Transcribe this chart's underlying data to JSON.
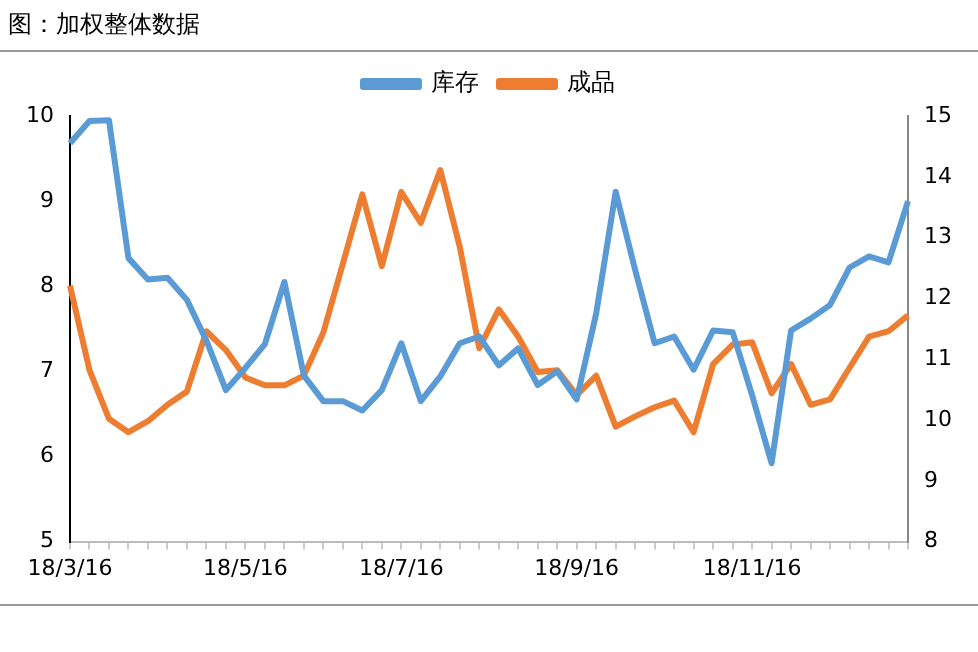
{
  "chart_data": {
    "type": "line",
    "title": "图：加权整体数据",
    "categories": [
      "18/3/16",
      null,
      null,
      null,
      null,
      null,
      null,
      null,
      null,
      "18/5/16",
      null,
      null,
      null,
      null,
      null,
      null,
      null,
      "18/7/16",
      null,
      null,
      null,
      null,
      null,
      null,
      null,
      null,
      "18/9/16",
      null,
      null,
      null,
      null,
      null,
      null,
      null,
      null,
      "18/11/16",
      null,
      null,
      null,
      null,
      null,
      null,
      null,
      null
    ],
    "series": [
      {
        "name": "库存",
        "color": "#5b9bd5",
        "values": [
          9.68,
          9.94,
          9.95,
          8.33,
          8.08,
          8.1,
          7.84,
          7.36,
          6.78,
          7.04,
          7.32,
          8.05,
          6.95,
          6.65,
          6.65,
          6.54,
          6.78,
          7.33,
          6.65,
          6.94,
          7.33,
          7.41,
          7.07,
          7.27,
          6.84,
          7.0,
          6.67,
          7.68,
          9.11,
          8.19,
          7.33,
          7.41,
          7.02,
          7.48,
          7.46,
          6.72,
          5.92,
          7.48,
          7.62,
          7.78,
          8.22,
          8.35,
          8.28,
          9.0
        ]
      },
      {
        "name": "成品",
        "color": "#ed7d31",
        "axis": "y2",
        "values": [
          12.21,
          10.82,
          10.02,
          9.8,
          9.98,
          10.25,
          10.47,
          11.46,
          11.15,
          10.7,
          10.57,
          10.57,
          10.73,
          11.44,
          12.57,
          13.71,
          12.53,
          13.75,
          13.24,
          14.11,
          12.85,
          11.18,
          11.82,
          11.37,
          10.79,
          10.82,
          10.41,
          10.73,
          9.89,
          10.06,
          10.21,
          10.32,
          9.8,
          10.92,
          11.24,
          11.28,
          10.44,
          10.92,
          10.25,
          10.34,
          10.86,
          11.37,
          11.46,
          11.72
        ]
      }
    ],
    "ylim": [
      5,
      10
    ],
    "yticks": [
      5,
      6,
      7,
      8,
      9,
      10
    ],
    "y2lim": [
      8,
      15
    ],
    "y2ticks": [
      8,
      9,
      10,
      11,
      12,
      13,
      14,
      15
    ],
    "legend": "top",
    "grid": false,
    "marker": "none"
  }
}
